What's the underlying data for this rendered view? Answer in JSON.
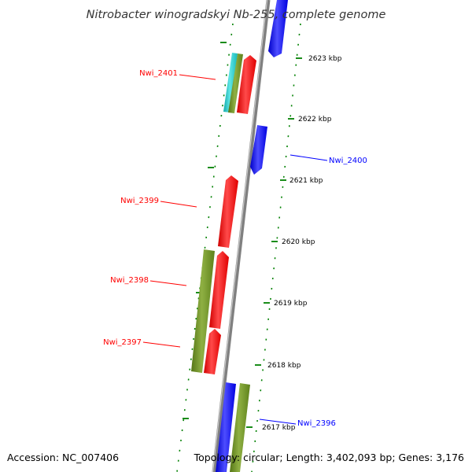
{
  "title": "Nitrobacter winogradskyi Nb-255, complete genome",
  "footer": {
    "accession": "Accession: NC_007406",
    "summary": "Topology: circular; Length: 3,402,093 bp; Genes: 3,176"
  },
  "colors": {
    "red": "#ff0000",
    "blue": "#0000ff",
    "olive": "#6b8e23",
    "cyan": "#1ec8c8",
    "dots": "#008000",
    "backbone": "#808080"
  },
  "ticks": [
    {
      "label": "2623 kbp"
    },
    {
      "label": "2622 kbp"
    },
    {
      "label": "2621 kbp"
    },
    {
      "label": "2620 kbp"
    },
    {
      "label": "2619 kbp"
    },
    {
      "label": "2618 kbp"
    },
    {
      "label": "2617 kbp"
    }
  ],
  "gene_labels": [
    {
      "name": "Nwi_2401",
      "color": "red"
    },
    {
      "name": "Nwi_2400",
      "color": "blue"
    },
    {
      "name": "Nwi_2399",
      "color": "red"
    },
    {
      "name": "Nwi_2398",
      "color": "red"
    },
    {
      "name": "Nwi_2397",
      "color": "red"
    },
    {
      "name": "Nwi_2396",
      "color": "blue"
    }
  ]
}
